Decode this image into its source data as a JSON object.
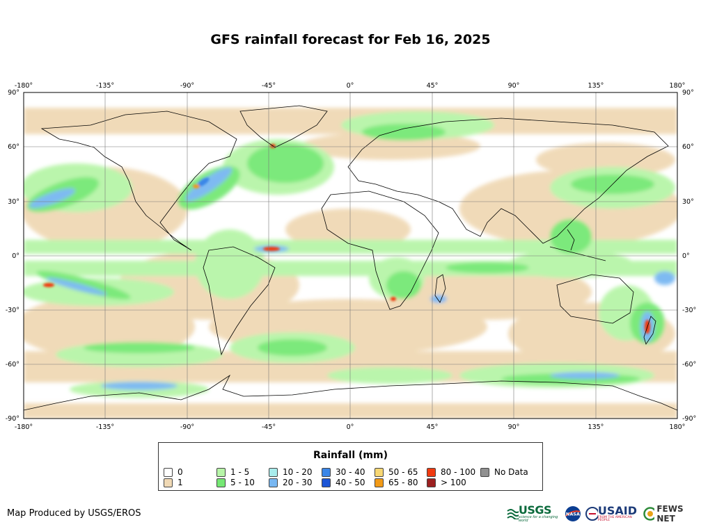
{
  "title": "GFS rainfall forecast for Feb 16, 2025",
  "map": {
    "lon_ticks": [
      "-180°",
      "-135°",
      "-90°",
      "-45°",
      "0°",
      "45°",
      "90°",
      "135°",
      "180°"
    ],
    "lat_ticks": [
      "90°",
      "60°",
      "30°",
      "0°",
      "-30°",
      "-60°",
      "-90°"
    ],
    "lon_range": [
      -180,
      180
    ],
    "lat_range": [
      -90,
      90
    ],
    "grid": true,
    "ocean_color": "#ffffff",
    "land_outline_color": "#000000"
  },
  "legend": {
    "title": "Rainfall (mm)",
    "items": [
      {
        "label": "0",
        "color": "#ffffff"
      },
      {
        "label": "1",
        "color": "#f0d9b5"
      },
      {
        "label": "1 - 5",
        "color": "#b7f5a8"
      },
      {
        "label": "5 - 10",
        "color": "#76e874"
      },
      {
        "label": "10 - 20",
        "color": "#a8ecec"
      },
      {
        "label": "20 - 30",
        "color": "#78b7f2"
      },
      {
        "label": "30 - 40",
        "color": "#3a86e8"
      },
      {
        "label": "40 - 50",
        "color": "#1c55d6"
      },
      {
        "label": "50 - 65",
        "color": "#f7d774"
      },
      {
        "label": "65 - 80",
        "color": "#f29a16"
      },
      {
        "label": "80 - 100",
        "color": "#f03a10"
      },
      {
        "label": "> 100",
        "color": "#9c2020"
      },
      {
        "label": "No Data",
        "color": "#909090"
      }
    ]
  },
  "credit": "Map Produced by USGS/EROS",
  "logos": {
    "usgs": "USGS",
    "usgs_tagline": "science for a changing world",
    "nasa": "NASA",
    "usaid": "USAID",
    "usaid_tagline": "FROM THE AMERICAN PEOPLE",
    "fews": "FEWS NET"
  }
}
